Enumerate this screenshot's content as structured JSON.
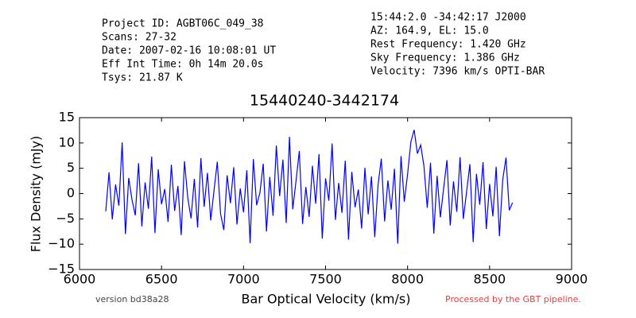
{
  "chart_data": {
    "type": "line",
    "header_left": [
      "Project ID: AGBT06C_049_38",
      "Scans: 27-32",
      "Date: 2007-02-16 10:08:01 UT",
      "Eff Int Time: 0h 14m 20.0s",
      "Tsys: 21.87 K"
    ],
    "header_right": [
      "15:44:2.0 -34:42:17 J2000",
      "AZ: 164.9, EL: 15.0",
      "Rest Frequency:   1.420 GHz",
      "Sky Frequency:    1.386 GHz",
      "Velocity: 7396 km/s OPTI-BAR"
    ],
    "title": "15440240-3442174",
    "xlabel": "Bar Optical Velocity (km/s)",
    "ylabel": "Flux Density (mJy)",
    "version": "version bd38a28",
    "pipeline_note": "Processed by the GBT pipeline.",
    "color": "#0000ff",
    "xlim": [
      6000,
      9000
    ],
    "xticks": [
      6000,
      6500,
      7000,
      7500,
      8000,
      8500,
      9000
    ],
    "ylim": [
      -15,
      15
    ],
    "yticks": [
      {
        "value": -15,
        "label": "−15"
      },
      {
        "value": -10,
        "label": "−10"
      },
      {
        "value": -5,
        "label": "−5"
      },
      0,
      5,
      10,
      15
    ],
    "grid": false,
    "x": [
      6160,
      6180,
      6200,
      6220,
      6240,
      6260,
      6280,
      6300,
      6320,
      6340,
      6360,
      6380,
      6400,
      6420,
      6440,
      6460,
      6480,
      6500,
      6520,
      6540,
      6560,
      6580,
      6600,
      6620,
      6640,
      6660,
      6680,
      6700,
      6720,
      6740,
      6760,
      6780,
      6800,
      6820,
      6840,
      6860,
      6880,
      6900,
      6920,
      6940,
      6960,
      6980,
      7000,
      7020,
      7040,
      7060,
      7080,
      7100,
      7120,
      7140,
      7160,
      7180,
      7200,
      7220,
      7240,
      7260,
      7280,
      7300,
      7320,
      7340,
      7360,
      7380,
      7400,
      7420,
      7440,
      7460,
      7480,
      7500,
      7520,
      7540,
      7560,
      7580,
      7600,
      7620,
      7640,
      7660,
      7680,
      7700,
      7720,
      7740,
      7760,
      7780,
      7800,
      7820,
      7840,
      7860,
      7880,
      7900,
      7920,
      7940,
      7960,
      7980,
      8000,
      8020,
      8040,
      8060,
      8080,
      8100,
      8120,
      8140,
      8160,
      8180,
      8200,
      8220,
      8240,
      8260,
      8280,
      8300,
      8320,
      8340,
      8360,
      8380,
      8400,
      8420,
      8440,
      8460,
      8480,
      8500,
      8520,
      8540,
      8560,
      8580,
      8600,
      8620,
      8640
    ],
    "values": [
      -3.5,
      4.2,
      -5.1,
      1.8,
      -2.4,
      10.1,
      -8.0,
      3.1,
      -1.2,
      -4.3,
      6.0,
      -6.5,
      2.2,
      -3.0,
      7.3,
      -7.8,
      4.8,
      -2.1,
      0.9,
      -5.6,
      5.7,
      -3.4,
      1.5,
      -8.2,
      6.4,
      -0.8,
      -4.9,
      2.9,
      -6.7,
      7.0,
      -2.6,
      4.1,
      -5.3,
      0.6,
      6.3,
      -4.0,
      -7.2,
      3.6,
      -1.9,
      5.2,
      -6.1,
      1.0,
      -3.7,
      4.6,
      -9.8,
      6.8,
      -2.3,
      0.2,
      5.9,
      -7.5,
      3.3,
      -4.4,
      9.5,
      -0.5,
      6.7,
      -5.8,
      11.2,
      -3.1,
      2.5,
      8.4,
      -6.0,
      1.3,
      -4.6,
      5.5,
      -2.0,
      7.8,
      -8.9,
      3.0,
      -1.4,
      9.9,
      -5.2,
      2.1,
      -3.8,
      6.5,
      -9.1,
      4.3,
      -2.7,
      0.8,
      -6.9,
      5.1,
      -4.1,
      3.4,
      -8.6,
      1.7,
      6.9,
      -5.5,
      2.6,
      -3.2,
      4.9,
      -9.9,
      7.4,
      -1.6,
      3.8,
      10.2,
      12.6,
      7.9,
      9.6,
      5.4,
      -2.8,
      6.1,
      -7.9,
      3.5,
      -4.7,
      1.1,
      6.6,
      -6.3,
      2.4,
      -3.6,
      7.2,
      -5.0,
      0.4,
      5.8,
      -9.6,
      3.9,
      -2.2,
      6.2,
      -7.0,
      1.9,
      -4.5,
      5.3,
      -8.4,
      2.7,
      7.1,
      -3.3,
      -1.8
    ]
  }
}
